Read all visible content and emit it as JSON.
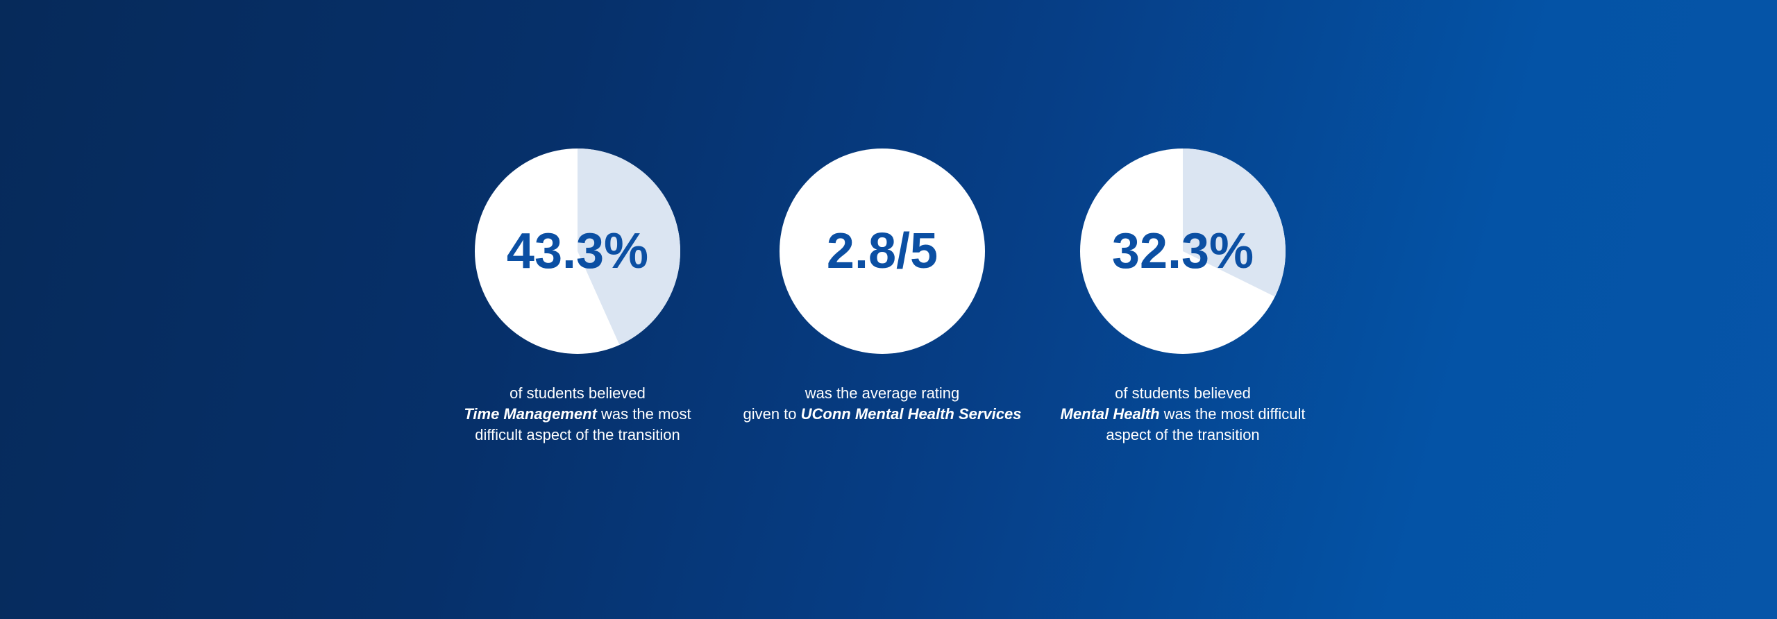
{
  "colors": {
    "circle_fill": "#ffffff",
    "slice_fill": "#dbe5f2",
    "value_text": "#0b4fa3",
    "caption_text": "#ffffff"
  },
  "chart_data": [
    {
      "type": "pie",
      "value_label": "43.3%",
      "values": [
        43.3,
        56.7
      ],
      "highlighted_fraction": 0.433,
      "caption": {
        "line1": "of students believed",
        "line2_emphasis": "Time Management",
        "line2_rest": " was the most",
        "line3": "difficult aspect of the transition"
      }
    },
    {
      "type": "pie",
      "value_label": "2.8/5",
      "rating": 2.8,
      "rating_max": 5,
      "caption": {
        "line1": "was the average rating",
        "line2_prefix": "given to ",
        "line2_emphasis": "UConn Mental Health Services"
      }
    },
    {
      "type": "pie",
      "value_label": "32.3%",
      "values": [
        32.3,
        67.7
      ],
      "highlighted_fraction": 0.323,
      "caption": {
        "line1": "of students believed",
        "line2_emphasis": "Mental Health",
        "line2_rest": " was the most difficult",
        "line3": "aspect of the transition"
      }
    }
  ]
}
